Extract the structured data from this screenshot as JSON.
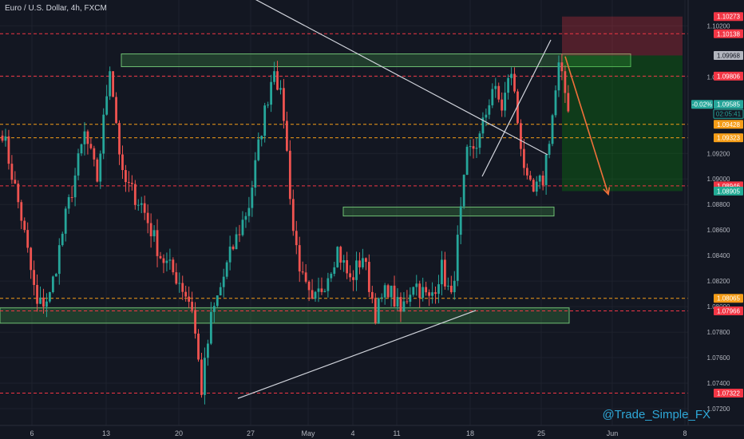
{
  "header": {
    "title": "Euro / U.S. Dollar, 4h, FXCM"
  },
  "watermark": "@Trade_Simple_FX",
  "chart_data": {
    "type": "candlestick",
    "symbol": "EURUSD",
    "interval": "4h",
    "ylim": [
      1.071,
      1.1034
    ],
    "y_ticks": [
      "1.10200",
      "1.09800",
      "1.09200",
      "1.09000",
      "1.08800",
      "1.08600",
      "1.08400",
      "1.08200",
      "1.08000",
      "1.07800",
      "1.07600",
      "1.07400",
      "1.07200"
    ],
    "x_ticks": [
      {
        "label": "6",
        "pos": 40
      },
      {
        "label": "13",
        "pos": 133
      },
      {
        "label": "20",
        "pos": 224
      },
      {
        "label": "27",
        "pos": 314
      },
      {
        "label": "May",
        "pos": 386
      },
      {
        "label": "4",
        "pos": 442
      },
      {
        "label": "11",
        "pos": 497
      },
      {
        "label": "18",
        "pos": 589
      },
      {
        "label": "25",
        "pos": 678
      },
      {
        "label": "Jun",
        "pos": 767
      },
      {
        "label": "8",
        "pos": 858
      }
    ],
    "price_badges": [
      {
        "label": "1.10273",
        "value": 1.10273,
        "kind": "red"
      },
      {
        "label": "1.10138",
        "value": 1.10138,
        "kind": "red"
      },
      {
        "label": "1.09968",
        "value": 1.09968,
        "kind": "gray"
      },
      {
        "label": "1.09806",
        "value": 1.09806,
        "kind": "red"
      },
      {
        "label": "1.09585",
        "value": 1.09585,
        "kind": "teal"
      },
      {
        "label": "02:05:41",
        "value": 1.0951,
        "kind": "timer"
      },
      {
        "label": "1.09428",
        "value": 1.09428,
        "kind": "orange"
      },
      {
        "label": "1.09323",
        "value": 1.09323,
        "kind": "orange"
      },
      {
        "label": "1.08946",
        "value": 1.08946,
        "kind": "red"
      },
      {
        "label": "1.08905",
        "value": 1.08905,
        "kind": "green"
      },
      {
        "label": "1.08065",
        "value": 1.08065,
        "kind": "orange"
      },
      {
        "label": "1.07966",
        "value": 1.07966,
        "kind": "red"
      },
      {
        "label": "1.07322",
        "value": 1.07322,
        "kind": "red"
      }
    ],
    "change_badge": "-0.02%",
    "horizontal_levels": [
      {
        "value": 1.10138,
        "color": "#f23645"
      },
      {
        "value": 1.09806,
        "color": "#f23645"
      },
      {
        "value": 1.09428,
        "color": "#f59d18"
      },
      {
        "value": 1.09323,
        "color": "#f59d18"
      },
      {
        "value": 1.08946,
        "color": "#f23645"
      },
      {
        "value": 1.08065,
        "color": "#f59d18"
      },
      {
        "value": 1.07966,
        "color": "#f23645"
      },
      {
        "value": 1.07322,
        "color": "#f23645"
      }
    ],
    "zones": [
      {
        "x1": 152,
        "x2": 790,
        "y_top": 1.0998,
        "y_bot": 1.0988
      },
      {
        "x1": 430,
        "x2": 694,
        "y_top": 1.0878,
        "y_bot": 1.0871
      },
      {
        "x1": 0,
        "x2": 713,
        "y_top": 1.0799,
        "y_bot": 1.0787
      }
    ],
    "position": {
      "entry": 1.09968,
      "stop": 1.10273,
      "target": 1.08905,
      "x1": 704,
      "x2": 855
    },
    "trendlines": [
      {
        "x1": 310,
        "y1": 1.1044,
        "x2": 686,
        "y2": 1.0919
      },
      {
        "x1": 298,
        "y1": 1.0728,
        "x2": 596,
        "y2": 1.0797
      },
      {
        "x1": 604,
        "y1": 1.0902,
        "x2": 690,
        "y2": 1.1009
      }
    ],
    "forecast_arrow": {
      "x1": 708,
      "y1": 1.0996,
      "x2": 762,
      "y2": 1.0888
    },
    "anchors": [
      {
        "i": 0,
        "p": 1.0938
      },
      {
        "i": 6,
        "p": 1.087
      },
      {
        "i": 11,
        "p": 1.08
      },
      {
        "i": 15,
        "p": 1.0808
      },
      {
        "i": 20,
        "p": 1.087
      },
      {
        "i": 26,
        "p": 1.0935
      },
      {
        "i": 30,
        "p": 1.09
      },
      {
        "i": 34,
        "p": 1.099
      },
      {
        "i": 38,
        "p": 1.09
      },
      {
        "i": 44,
        "p": 1.088
      },
      {
        "i": 50,
        "p": 1.084
      },
      {
        "i": 56,
        "p": 1.082
      },
      {
        "i": 60,
        "p": 1.08
      },
      {
        "i": 63,
        "p": 1.0735
      },
      {
        "i": 66,
        "p": 1.079
      },
      {
        "i": 72,
        "p": 1.084
      },
      {
        "i": 78,
        "p": 1.088
      },
      {
        "i": 82,
        "p": 1.094
      },
      {
        "i": 86,
        "p": 1.099
      },
      {
        "i": 89,
        "p": 1.095
      },
      {
        "i": 92,
        "p": 1.086
      },
      {
        "i": 95,
        "p": 1.082
      },
      {
        "i": 98,
        "p": 1.08
      },
      {
        "i": 102,
        "p": 1.082
      },
      {
        "i": 106,
        "p": 1.0845
      },
      {
        "i": 110,
        "p": 1.082
      },
      {
        "i": 114,
        "p": 1.084
      },
      {
        "i": 118,
        "p": 1.0795
      },
      {
        "i": 122,
        "p": 1.0815
      },
      {
        "i": 126,
        "p": 1.0795
      },
      {
        "i": 130,
        "p": 1.082
      },
      {
        "i": 135,
        "p": 1.0805
      },
      {
        "i": 139,
        "p": 1.083
      },
      {
        "i": 142,
        "p": 1.0805
      },
      {
        "i": 147,
        "p": 1.0918
      },
      {
        "i": 151,
        "p": 1.0932
      },
      {
        "i": 155,
        "p": 1.0972
      },
      {
        "i": 158,
        "p": 1.0956
      },
      {
        "i": 161,
        "p": 1.0985
      },
      {
        "i": 163,
        "p": 1.0945
      },
      {
        "i": 166,
        "p": 1.0895
      },
      {
        "i": 168,
        "p": 1.0888
      },
      {
        "i": 171,
        "p": 1.09
      },
      {
        "i": 174,
        "p": 1.095
      },
      {
        "i": 176,
        "p": 1.0987
      },
      {
        "i": 179,
        "p": 1.0958
      }
    ],
    "candles": {
      "count": 180,
      "x_start": 3,
      "x_step": 3.96,
      "seed": 7
    }
  },
  "colors": {
    "background": "#131722",
    "grid": "#1e222d",
    "up": "#26a69a",
    "down": "#ef5350",
    "zone_fill": "rgba(76,175,80,0.25)",
    "zone_stroke": "#6fbf73",
    "stop_fill": "rgba(242,54,69,0.28)",
    "target_fill": "rgba(8,153,8,0.28)",
    "trendline": "#d1d4dc",
    "arrow": "#f0703a",
    "text": "#b2b5be"
  }
}
